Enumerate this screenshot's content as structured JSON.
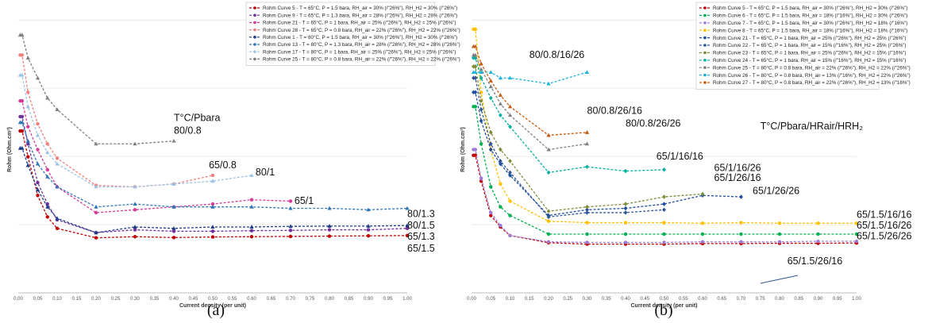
{
  "captions": [
    "(a)",
    "(b)"
  ],
  "chart_data": [
    {
      "type": "line",
      "panel": "a",
      "xlabel": "Current density (per unit)",
      "ylabel": "Rohm (Ohm.cm²)",
      "xlim": [
        0,
        1
      ],
      "ylim": [
        0,
        1
      ],
      "grid": "horizontal",
      "y_tick_labels_shown": false,
      "x_ticks": [
        "0.00",
        "0.05",
        "0.10",
        "0.15",
        "0.20",
        "0.25",
        "0.30",
        "0.35",
        "0.40",
        "0.45",
        "0.50",
        "0.55",
        "0.60",
        "0.65",
        "0.70",
        "0.75",
        "0.80",
        "0.85",
        "0.90",
        "0.95",
        "1.00"
      ],
      "legend_position": "top-right",
      "series": [
        {
          "name": "Rohm Curve 5 - T =  65°C, P = 1.5 bara, RH_air = 30% (/\"26%\"), RH_H2 = 30% (/\"26%\")",
          "color": "#c00000",
          "marker": "circle",
          "x": [
            0.005,
            0.01,
            0.025,
            0.05,
            0.075,
            0.1,
            0.2,
            0.3,
            0.4,
            0.5,
            0.6,
            0.7,
            0.8,
            0.9,
            1.0
          ],
          "y": [
            0.565,
            0.565,
            0.475,
            0.34,
            0.265,
            0.225,
            0.192,
            0.196,
            0.193,
            0.195,
            0.196,
            0.197,
            0.198,
            0.199,
            0.2
          ]
        },
        {
          "name": "Rohm Curve 9 - T =  65°C, P = 1.3 bara, RH_air = 28% (/\"26%\"), RH_H2 = 28% (/\"26%\")",
          "color": "#7030a0",
          "marker": "circle",
          "x": [
            0.005,
            0.01,
            0.025,
            0.05,
            0.075,
            0.1,
            0.2,
            0.3,
            0.4,
            0.5,
            0.6,
            0.7,
            0.8,
            0.9,
            1.0
          ],
          "y": [
            0.615,
            0.615,
            0.52,
            0.385,
            0.31,
            0.255,
            0.21,
            0.22,
            0.215,
            0.215,
            0.217,
            0.218,
            0.22,
            0.22,
            0.225
          ]
        },
        {
          "name": "Rohm Curve 21 - T =  65°C, P = 1 bara, RH_air = 25% (/\"26%\"), RH_H2 = 25% (/\"26%\")",
          "color": "#d63b98",
          "marker": "circle",
          "x": [
            0.005,
            0.01,
            0.025,
            0.05,
            0.075,
            0.1,
            0.2,
            0.3,
            0.4,
            0.5,
            0.6,
            0.7
          ],
          "y": [
            0.67,
            0.67,
            0.58,
            0.5,
            0.43,
            0.37,
            0.28,
            0.29,
            0.3,
            0.31,
            0.325,
            0.32
          ]
        },
        {
          "name": "Rohm Curve 28 - T =  65°C, P = 0.8 bara, RH_air = 22% (/\"26%\"), RH_H2 = 22% (/\"26%\")",
          "color": "#f08080",
          "marker": "circle",
          "x": [
            0.005,
            0.01,
            0.025,
            0.05,
            0.075,
            0.1,
            0.2,
            0.3,
            0.4,
            0.5
          ],
          "y": [
            0.83,
            0.83,
            0.7,
            0.59,
            0.52,
            0.47,
            0.375,
            0.37,
            0.38,
            0.41
          ]
        },
        {
          "name": "Rohm Curve 1 - T = 80°C, P = 1.5 bara, RH_air = 30% (/\"26%\"), RH_H2 = 30% (/\"26%\")",
          "color": "#1f3c88",
          "marker": "triangle",
          "x": [
            0.005,
            0.01,
            0.025,
            0.05,
            0.075,
            0.1,
            0.2,
            0.3,
            0.4,
            0.5,
            0.6,
            0.7,
            0.8,
            0.9,
            1.0
          ],
          "y": [
            0.505,
            0.505,
            0.445,
            0.36,
            0.3,
            0.26,
            0.21,
            0.23,
            0.225,
            0.23,
            0.23,
            0.232,
            0.233,
            0.233,
            0.235
          ]
        },
        {
          "name": "Rohm Curve 13 - T =  80°C, P = 1.3 bara, RH_air = 28% (/\"26%\"), RH_H2 = 28% (/\"26%\")",
          "color": "#2e75b6",
          "marker": "triangle",
          "x": [
            0.005,
            0.01,
            0.025,
            0.05,
            0.075,
            0.1,
            0.2,
            0.3,
            0.4,
            0.5,
            0.6,
            0.7,
            0.8,
            0.9,
            1.0
          ],
          "y": [
            0.595,
            0.595,
            0.53,
            0.45,
            0.405,
            0.37,
            0.3,
            0.31,
            0.3,
            0.3,
            0.3,
            0.295,
            0.295,
            0.29,
            0.295
          ]
        },
        {
          "name": "Rohm Curve 17 - T =  80°C, P = 1 bara, RH_air = 25% (/\"26%\"), RH_H2 = 25% (/\"26%\")",
          "color": "#9dc3e6",
          "marker": "triangle",
          "x": [
            0.005,
            0.01,
            0.025,
            0.05,
            0.075,
            0.1,
            0.2,
            0.3,
            0.4,
            0.5,
            0.6
          ],
          "y": [
            0.76,
            0.76,
            0.65,
            0.55,
            0.49,
            0.45,
            0.37,
            0.37,
            0.38,
            0.39,
            0.41
          ]
        },
        {
          "name": "Rohm Curve 25 - T =  80°C, P = 0.8 bara, RH_air = 22% (/\"26%\"), RH_H2 = 22% (/\"26%\")",
          "color": "#7f7f7f",
          "marker": "triangle",
          "x": [
            0.005,
            0.01,
            0.025,
            0.05,
            0.075,
            0.1,
            0.2,
            0.3,
            0.4
          ],
          "y": [
            0.9,
            0.9,
            0.82,
            0.75,
            0.68,
            0.64,
            0.52,
            0.52,
            0.53
          ]
        }
      ],
      "annotations": [
        {
          "text": "T°C/Pbara",
          "x": 0.4,
          "y": 0.6
        },
        {
          "text": "80/0.8",
          "x": 0.4,
          "y": 0.555
        },
        {
          "text": "65/0.8",
          "x": 0.49,
          "y": 0.435
        },
        {
          "text": "80/1",
          "x": 0.61,
          "y": 0.41
        },
        {
          "text": "65/1",
          "x": 0.71,
          "y": 0.31
        },
        {
          "text": "80/1.3",
          "x": 1.0,
          "y": 0.265
        },
        {
          "text": "80/1.5",
          "x": 1.0,
          "y": 0.225
        },
        {
          "text": "65/1.3",
          "x": 1.0,
          "y": 0.186
        },
        {
          "text": "65/1.5",
          "x": 1.0,
          "y": 0.144
        }
      ]
    },
    {
      "type": "line",
      "panel": "b",
      "xlabel": "Current density (per unit)",
      "ylabel": "Rohm (Ohm.cm²)",
      "xlim": [
        0,
        1
      ],
      "ylim": [
        0,
        1
      ],
      "grid": "horizontal",
      "y_tick_labels_shown": false,
      "x_ticks": [
        "0.00",
        "0.05",
        "0.10",
        "0.15",
        "0.20",
        "0.25",
        "0.30",
        "0.35",
        "0.40",
        "0.45",
        "0.50",
        "0.55",
        "0.60",
        "0.65",
        "0.70",
        "0.75",
        "0.80",
        "0.85",
        "0.90",
        "0.95",
        "1.00"
      ],
      "legend_position": "top-right",
      "series": [
        {
          "name": "Rohm Curve 5 - T =  65°C, P = 1.5 bara, RH_air = 30% (/\"26%\"), RH_H2 = 30% (/\"26%\")",
          "color": "#c00000",
          "marker": "circle",
          "x": [
            0.005,
            0.01,
            0.025,
            0.05,
            0.075,
            0.1,
            0.2,
            0.3,
            0.4,
            0.5,
            0.6,
            0.7,
            0.8,
            0.9,
            1.0
          ],
          "y": [
            0.48,
            0.48,
            0.39,
            0.27,
            0.23,
            0.2,
            0.175,
            0.17,
            0.17,
            0.17,
            0.172,
            0.172,
            0.173,
            0.173,
            0.174
          ]
        },
        {
          "name": "Rohm Curve 6 - T =  65°C, P = 1.5 bara, RH_air = 18% (/\"16%\"), RH_H2 = 30% (/\"26%\")",
          "color": "#00b050",
          "marker": "circle",
          "x": [
            0.005,
            0.01,
            0.025,
            0.05,
            0.075,
            0.1,
            0.2,
            0.3,
            0.4,
            0.5,
            0.6,
            0.7,
            0.8,
            0.9,
            1.0
          ],
          "y": [
            0.65,
            0.65,
            0.52,
            0.37,
            0.3,
            0.27,
            0.205,
            0.205,
            0.205,
            0.205,
            0.205,
            0.205,
            0.205,
            0.205,
            0.205
          ]
        },
        {
          "name": "Rohm Curve 7 - T =  65°C, P = 1.5 bara, RH_air = 30% (/\"26%\"), RH_H2 = 18% (/\"16%\")",
          "color": "#9e7cd6",
          "marker": "circle",
          "x": [
            0.005,
            0.01,
            0.025,
            0.05,
            0.075,
            0.1,
            0.2,
            0.3,
            0.4,
            0.5,
            0.6,
            0.7,
            0.8,
            0.9,
            1.0
          ],
          "y": [
            0.5,
            0.5,
            0.4,
            0.28,
            0.235,
            0.2,
            0.178,
            0.176,
            0.176,
            0.176,
            0.178,
            0.178,
            0.178,
            0.18,
            0.18
          ]
        },
        {
          "name": "Rohm Curve 8 - T =  65°C, P = 1.5 bara, RH_air = 18% (/\"16%\"), RH_H2 = 18% (/\"16%\")",
          "color": "#ffc000",
          "marker": "circle",
          "x": [
            0.005,
            0.01,
            0.025,
            0.05,
            0.075,
            0.1,
            0.2,
            0.3,
            0.4,
            0.5,
            0.6,
            0.7,
            0.8,
            0.9,
            1.0
          ],
          "y": [
            0.92,
            0.92,
            0.7,
            0.5,
            0.38,
            0.32,
            0.25,
            0.245,
            0.245,
            0.245,
            0.243,
            0.245,
            0.243,
            0.243,
            0.243
          ]
        },
        {
          "name": "Rohm Curve 21 - T =  65°C, P = 1 bara, RH_air = 25% (/\"26%\"), RH_H2 = 25% (/\"26%\")",
          "color": "#1f4e9e",
          "marker": "diamond",
          "x": [
            0.005,
            0.01,
            0.025,
            0.05,
            0.075,
            0.1,
            0.2,
            0.3,
            0.4,
            0.5,
            0.6,
            0.7
          ],
          "y": [
            0.7,
            0.7,
            0.6,
            0.5,
            0.45,
            0.41,
            0.27,
            0.29,
            0.295,
            0.31,
            0.34,
            0.335
          ]
        },
        {
          "name": "Rohm Curve 22 - T =  65°C, P = 1 bara, RH_air = 15% (/\"16%\"), RH_H2 = 25% (/\"26%\")",
          "color": "#2f5597",
          "marker": "diamond",
          "x": [
            0.005,
            0.01,
            0.025,
            0.05,
            0.075,
            0.1,
            0.2,
            0.3,
            0.4,
            0.5
          ],
          "y": [
            0.75,
            0.75,
            0.64,
            0.52,
            0.46,
            0.42,
            0.265,
            0.28,
            0.28,
            0.29
          ]
        },
        {
          "name": "Rohm Curve 23 - T =  65°C, P = 1 bara, RH_air = 25% (/\"26%\"), RH_H2 = 15% (/\"16%\")",
          "color": "#7f8c3a",
          "marker": "diamond",
          "x": [
            0.005,
            0.01,
            0.025,
            0.05,
            0.075,
            0.1,
            0.2,
            0.3,
            0.4,
            0.5,
            0.6
          ],
          "y": [
            0.79,
            0.79,
            0.67,
            0.56,
            0.5,
            0.46,
            0.285,
            0.3,
            0.31,
            0.335,
            0.345
          ]
        },
        {
          "name": "Rohm Curve 24 - T =  65°C, P = 1 bara, RH_air = 15% (/\"16%\"), RH_H2 = 15% (/\"16%\")",
          "color": "#00b0a0",
          "marker": "diamond",
          "x": [
            0.005,
            0.01,
            0.025,
            0.05,
            0.075,
            0.1,
            0.2,
            0.3,
            0.4,
            0.5
          ],
          "y": [
            0.82,
            0.82,
            0.75,
            0.68,
            0.62,
            0.58,
            0.42,
            0.44,
            0.425,
            0.43
          ]
        },
        {
          "name": "Rohm Curve 25 - T =  80°C, P = 0.8 bara, RH_air = 22% (/\"26%\"), RH_H2 = 22% (/\"26%\")",
          "color": "#7f7f7f",
          "marker": "triangle",
          "x": [
            0.005,
            0.01,
            0.025,
            0.05,
            0.075,
            0.1,
            0.2,
            0.3
          ],
          "y": [
            0.83,
            0.83,
            0.78,
            0.72,
            0.66,
            0.62,
            0.5,
            0.52
          ]
        },
        {
          "name": "Rohm Curve 26 - T =  80°C, P = 0.8 bara, RH_air = 13% (/\"16%\"), RH_H2 = 22% (/\"26%\")",
          "color": "#1fb4d9",
          "marker": "triangle",
          "x": [
            0.005,
            0.01,
            0.025,
            0.05,
            0.075,
            0.1,
            0.2,
            0.3
          ],
          "y": [
            0.77,
            0.77,
            0.77,
            0.77,
            0.75,
            0.75,
            0.73,
            0.77
          ]
        },
        {
          "name": "Rohm Curve 27 - T =  80°C, P = 0.8 bara, RH_air = 22% (/\"26%\"), RH_H2 = 13% (/\"16%\")",
          "color": "#c55a11",
          "marker": "triangle",
          "x": [
            0.005,
            0.01,
            0.025,
            0.05,
            0.075,
            0.1,
            0.2,
            0.3
          ],
          "y": [
            0.86,
            0.86,
            0.8,
            0.74,
            0.69,
            0.65,
            0.55,
            0.56
          ]
        }
      ],
      "annotations": [
        {
          "text": "80/0.8/16/26",
          "x": 0.15,
          "y": 0.82
        },
        {
          "text": "80/0.8/26/16",
          "x": 0.3,
          "y": 0.625
        },
        {
          "text": "80/0.8/26/26",
          "x": 0.4,
          "y": 0.58
        },
        {
          "text": "T°C/Pbara/HRair/HRH₂",
          "x": 0.75,
          "y": 0.57
        },
        {
          "text": "65/1/16/16",
          "x": 0.48,
          "y": 0.465
        },
        {
          "text": "65/1/16/26",
          "x": 0.63,
          "y": 0.425
        },
        {
          "text": "65/1/26/16",
          "x": 0.63,
          "y": 0.39
        },
        {
          "text": "65/1/26/26",
          "x": 0.73,
          "y": 0.345
        },
        {
          "text": "65/1.5/16/16",
          "x": 1.0,
          "y": 0.262
        },
        {
          "text": "65/1.5/16/26",
          "x": 1.0,
          "y": 0.224
        },
        {
          "text": "65/1.5/26/26",
          "x": 1.0,
          "y": 0.187
        },
        {
          "text": "65/1.5/26/16",
          "x": 0.82,
          "y": 0.1
        }
      ]
    }
  ]
}
